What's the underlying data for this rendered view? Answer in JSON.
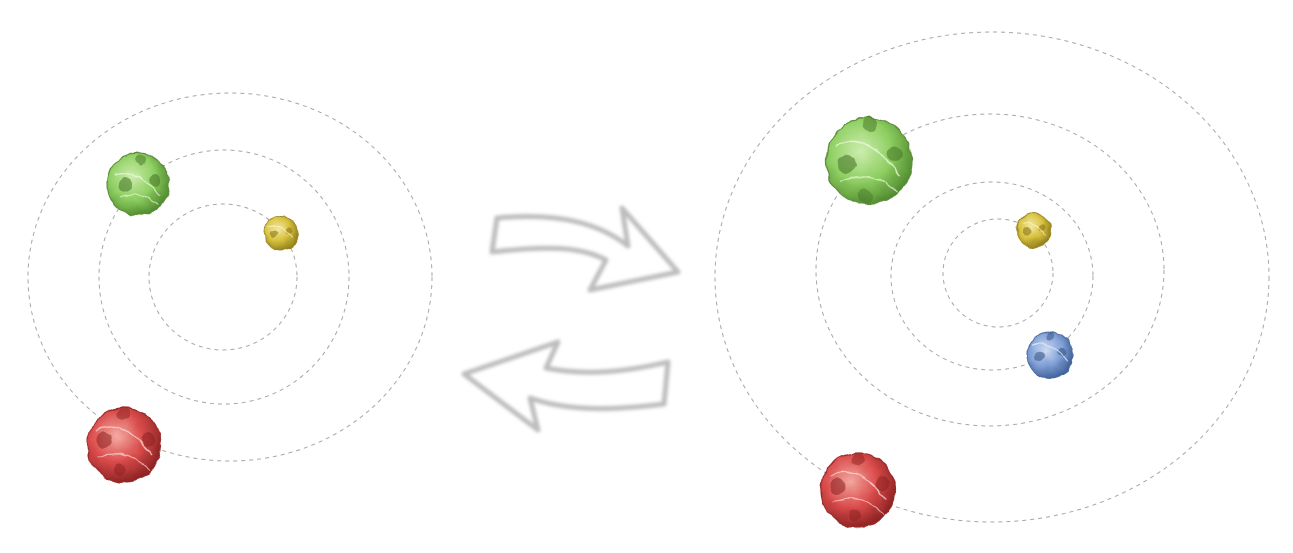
{
  "colors": {
    "background": "#ffffff",
    "orbit_stroke": "#a6a6a6",
    "arrow_stroke": "#bdbdbd",
    "sphere_green": "#8fcf62",
    "sphere_yellow": "#d8c23f",
    "sphere_red": "#d94a4a",
    "sphere_blue": "#7f9fd6"
  },
  "left_system": {
    "orbit_count": 3,
    "spheres": [
      "green",
      "yellow",
      "red"
    ]
  },
  "right_system": {
    "orbit_count": 4,
    "spheres": [
      "green",
      "yellow",
      "blue",
      "red"
    ]
  },
  "arrows": [
    {
      "direction": "left-to-right",
      "icon": "curved-arrow-right-icon"
    },
    {
      "direction": "right-to-left",
      "icon": "curved-arrow-left-icon"
    }
  ]
}
